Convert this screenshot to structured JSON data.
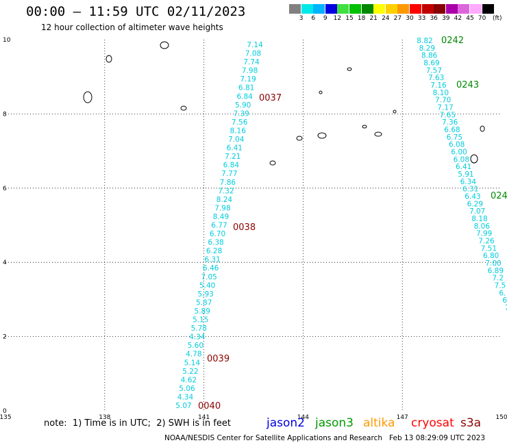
{
  "header": {
    "title": "00:00 – 11:59 UTC 02/11/2023",
    "subtitle": "12 hour collection of altimeter wave heights"
  },
  "color_scale": {
    "labels": [
      "3",
      "6",
      "9",
      "12",
      "15",
      "18",
      "21",
      "24",
      "27",
      "30",
      "33",
      "36",
      "39",
      "42",
      "45",
      "70"
    ],
    "unit": "(ft)",
    "colors": [
      "#808080",
      "#00e8e8",
      "#00b4ff",
      "#0000e0",
      "#40e040",
      "#00c000",
      "#008800",
      "#ffff00",
      "#ffd000",
      "#ff9900",
      "#ff0000",
      "#c00000",
      "#880000",
      "#aa00aa",
      "#dd66dd",
      "#ffaaff",
      "#000000"
    ]
  },
  "map": {
    "x_ticks": [
      "135",
      "138",
      "141",
      "144",
      "147",
      "150"
    ],
    "y_ticks": [
      "0",
      "2",
      "4",
      "6",
      "8",
      "10"
    ],
    "pass_times": [
      {
        "label": "0037",
        "color": "#8b0000"
      },
      {
        "label": "0038",
        "color": "#8b0000"
      },
      {
        "label": "0039",
        "color": "#8b0000"
      },
      {
        "label": "0040",
        "color": "#8b0000"
      },
      {
        "label": "0242",
        "color": "#008800"
      },
      {
        "label": "0243",
        "color": "#008800"
      },
      {
        "label": "024",
        "color": "#008800"
      }
    ],
    "track_a_values": [
      "7.14",
      "7.08",
      "7.74",
      "7.98",
      "7.19",
      "6.81",
      "6.84",
      "5.90",
      "7.39",
      "7.56",
      "8.16",
      "7.04",
      "6.41",
      "7.21",
      "6.84",
      "7.77",
      "7.86",
      "7.32",
      "8.24",
      "7.98",
      "8.49",
      "6.77",
      "6.70",
      "6.38",
      "6.28",
      "6.31",
      "6.46",
      "7.05",
      "5.40",
      "5.93",
      "5.87",
      "5.89",
      "5.15",
      "5.78",
      "4.34",
      "5.60",
      "4.78",
      "5.14",
      "5.22",
      "4.62",
      "5.06",
      "4.34",
      "5.07"
    ],
    "track_b_values": [
      "8.82",
      "8.29",
      "8.86",
      "8.69",
      "7.57",
      "7.63",
      "7.16",
      "8.10",
      "7.70",
      "7.17",
      "7.65",
      "7.36",
      "6.68",
      "6.75",
      "6.08",
      "6.00",
      "6.08",
      "6.41",
      "5.91",
      "6.34",
      "6.31",
      "6.43",
      "6.29",
      "7.07",
      "8.18",
      "8.06",
      "7.99",
      "7.26",
      "7.51",
      "6.80",
      "7.00",
      "6.89",
      "7.2",
      "7.5",
      "6.",
      "6",
      "7"
    ]
  },
  "legend": {
    "note": "note:  1) Time is in UTC;  2) SWH is in feet",
    "satellites": [
      {
        "name": "jason2",
        "color": "#0000dd"
      },
      {
        "name": "jason3",
        "color": "#009900"
      },
      {
        "name": "altika",
        "color": "#ff9900"
      },
      {
        "name": "cryosat",
        "color": "#ff0000"
      },
      {
        "name": "s3a",
        "color": "#8b0000"
      }
    ]
  },
  "footer": {
    "credit": "NOAA/NESDIS Center for Satellite Applications and Research",
    "timestamp": "Feb 13 08:29:09 UTC 2023"
  }
}
